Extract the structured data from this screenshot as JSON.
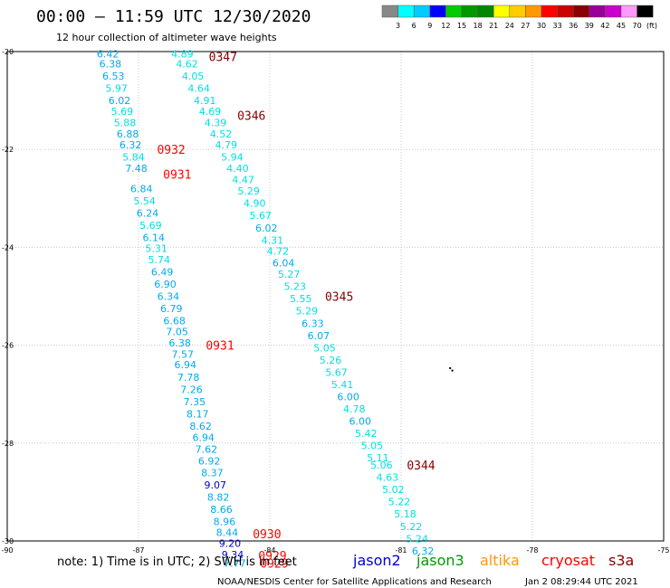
{
  "chart_data": {
    "type": "scatter",
    "title": "00:00 – 11:59 UTC 12/30/2020",
    "subtitle": "12 hour collection of altimeter wave heights",
    "x_ticks": [
      -90,
      -87,
      -84,
      -81,
      -78,
      -75
    ],
    "y_ticks": [
      -20,
      -22,
      -24,
      -26,
      -28,
      -30
    ],
    "xlim": [
      -90,
      -75
    ],
    "ylim": [
      -30,
      -20
    ],
    "grid": true,
    "colorbar": {
      "unit": "(ft)",
      "labels": [
        "3",
        "6",
        "9",
        "12",
        "15",
        "18",
        "21",
        "24",
        "27",
        "30",
        "33",
        "36",
        "39",
        "42",
        "45",
        "70"
      ],
      "colors": [
        "#888888",
        "#00ffff",
        "#00ccff",
        "#0000ff",
        "#00cc00",
        "#009900",
        "#008800",
        "#ffff00",
        "#ffcc00",
        "#ff9900",
        "#ff0000",
        "#cc0000",
        "#880000",
        "#990099",
        "#cc00cc",
        "#ff99ff",
        "#000000"
      ]
    },
    "tracks": [
      {
        "points": [
          {
            "lat": -20.05,
            "v": "6.42"
          },
          {
            "lat": -20.25,
            "v": "6.38"
          },
          {
            "lat": -20.5,
            "v": "6.53"
          },
          {
            "lat": -20.75,
            "v": "5.97"
          },
          {
            "lat": -21.0,
            "v": "6.02"
          },
          {
            "lat": -21.22,
            "v": "5.69"
          },
          {
            "lat": -21.45,
            "v": "5.88"
          },
          {
            "lat": -21.68,
            "v": "6.88"
          },
          {
            "lat": -21.9,
            "v": "6.32"
          },
          {
            "lat": -22.15,
            "v": "5.84"
          },
          {
            "lat": -22.38,
            "v": "7.48"
          },
          {
            "lat": -22.8,
            "v": "6.84"
          },
          {
            "lat": -23.05,
            "v": "5.54"
          },
          {
            "lat": -23.3,
            "v": "6.24"
          },
          {
            "lat": -23.55,
            "v": "5.69"
          },
          {
            "lat": -23.8,
            "v": "6.14"
          },
          {
            "lat": -24.02,
            "v": "5.31"
          },
          {
            "lat": -24.25,
            "v": "5.74"
          },
          {
            "lat": -24.5,
            "v": "6.49"
          },
          {
            "lat": -24.75,
            "v": "6.90"
          },
          {
            "lat": -25.0,
            "v": "6.34"
          },
          {
            "lat": -25.25,
            "v": "6.79"
          },
          {
            "lat": -25.5,
            "v": "6.68"
          },
          {
            "lat": -25.72,
            "v": "7.05"
          },
          {
            "lat": -25.95,
            "v": "6.38"
          },
          {
            "lat": -26.18,
            "v": "7.57"
          },
          {
            "lat": -26.4,
            "v": "6.94"
          },
          {
            "lat": -26.65,
            "v": "7.78"
          },
          {
            "lat": -26.9,
            "v": "7.26"
          },
          {
            "lat": -27.15,
            "v": "7.35"
          },
          {
            "lat": -27.4,
            "v": "8.17"
          },
          {
            "lat": -27.65,
            "v": "8.62"
          },
          {
            "lat": -27.88,
            "v": "6.94"
          },
          {
            "lat": -28.12,
            "v": "7.62"
          },
          {
            "lat": -28.36,
            "v": "6.92"
          },
          {
            "lat": -28.6,
            "v": "8.37"
          },
          {
            "lat": -28.85,
            "v": "9.07"
          },
          {
            "lat": -29.1,
            "v": "8.82"
          },
          {
            "lat": -29.35,
            "v": "8.66"
          },
          {
            "lat": -29.6,
            "v": "8.96"
          },
          {
            "lat": -29.82,
            "v": "8.44"
          },
          {
            "lat": -30.05,
            "v": "9.20"
          },
          {
            "lat": -30.28,
            "v": "9.34"
          },
          {
            "lat": -30.45,
            "v": "7.77"
          }
        ],
        "lon_start": -87.7,
        "lon_end": -84.8,
        "times": [
          {
            "lat": -22.0,
            "label": "0932"
          },
          {
            "lat": -22.5,
            "label": "0931"
          },
          {
            "lat": -26.0,
            "label": "0931"
          },
          {
            "lat": -29.85,
            "label": "0930"
          },
          {
            "lat": -30.3,
            "label": "0929"
          },
          {
            "lat": -30.45,
            "label": "0929"
          }
        ],
        "time_color": "#ff0000"
      },
      {
        "points": [
          {
            "lat": -20.05,
            "v": "4.89"
          },
          {
            "lat": -20.25,
            "v": "4.62"
          },
          {
            "lat": -20.5,
            "v": "4.05"
          },
          {
            "lat": -20.75,
            "v": "4.64"
          },
          {
            "lat": -21.0,
            "v": "4.91"
          },
          {
            "lat": -21.22,
            "v": "4.69"
          },
          {
            "lat": -21.45,
            "v": "4.39"
          },
          {
            "lat": -21.68,
            "v": "4.52"
          },
          {
            "lat": -21.9,
            "v": "4.79"
          },
          {
            "lat": -22.15,
            "v": "5.94"
          },
          {
            "lat": -22.38,
            "v": "4.40"
          },
          {
            "lat": -22.62,
            "v": "4.47"
          },
          {
            "lat": -22.85,
            "v": "5.29"
          },
          {
            "lat": -23.1,
            "v": "4.90"
          },
          {
            "lat": -23.35,
            "v": "5.67"
          },
          {
            "lat": -23.6,
            "v": "6.02"
          },
          {
            "lat": -23.85,
            "v": "4.31"
          },
          {
            "lat": -24.08,
            "v": "4.72"
          },
          {
            "lat": -24.32,
            "v": "6.04"
          },
          {
            "lat": -24.55,
            "v": "5.27"
          },
          {
            "lat": -24.8,
            "v": "5.23"
          },
          {
            "lat": -25.05,
            "v": "5.55"
          },
          {
            "lat": -25.3,
            "v": "5.29"
          },
          {
            "lat": -25.55,
            "v": "6.33"
          },
          {
            "lat": -25.8,
            "v": "6.07"
          },
          {
            "lat": -26.05,
            "v": "5.05"
          },
          {
            "lat": -26.3,
            "v": "5.26"
          },
          {
            "lat": -26.55,
            "v": "5.67"
          },
          {
            "lat": -26.8,
            "v": "5.41"
          },
          {
            "lat": -27.05,
            "v": "6.00"
          },
          {
            "lat": -27.3,
            "v": "4.78"
          },
          {
            "lat": -27.55,
            "v": "6.00"
          },
          {
            "lat": -27.8,
            "v": "5.42"
          },
          {
            "lat": -28.05,
            "v": "5.05"
          },
          {
            "lat": -28.3,
            "v": "5.11"
          },
          {
            "lat": -28.45,
            "v": "5.06"
          },
          {
            "lat": -28.7,
            "v": "4.63"
          },
          {
            "lat": -28.95,
            "v": "5.02"
          },
          {
            "lat": -29.2,
            "v": "5.22"
          },
          {
            "lat": -29.45,
            "v": "5.18"
          },
          {
            "lat": -29.7,
            "v": "5.22"
          },
          {
            "lat": -29.95,
            "v": "5.24"
          },
          {
            "lat": -30.2,
            "v": "6.32"
          }
        ],
        "lon_start": -86.0,
        "lon_end": -80.5,
        "times": [
          {
            "lat": -20.1,
            "label": "0347"
          },
          {
            "lat": -21.3,
            "label": "0346"
          },
          {
            "lat": -25.0,
            "label": "0345"
          },
          {
            "lat": -28.45,
            "label": "0344"
          }
        ],
        "time_color": "#880000"
      }
    ],
    "specks": [
      {
        "lon": -79.9,
        "lat": -26.45
      },
      {
        "lon": -79.85,
        "lat": -26.5
      }
    ]
  },
  "footer": {
    "note": "note: 1) Time is in UTC; 2) SWH is in feet",
    "satellites": [
      {
        "name": "jason2",
        "color": "#0000cc"
      },
      {
        "name": "jason3",
        "color": "#009900"
      },
      {
        "name": "altika",
        "color": "#ff9900"
      },
      {
        "name": "cryosat",
        "color": "#ff0000"
      },
      {
        "name": "s3a",
        "color": "#880000"
      }
    ],
    "credit": "NOAA/NESDIS Center for Satellite Applications and Research",
    "timestamp": "Jan  2 08:29:44 UTC 2021"
  }
}
